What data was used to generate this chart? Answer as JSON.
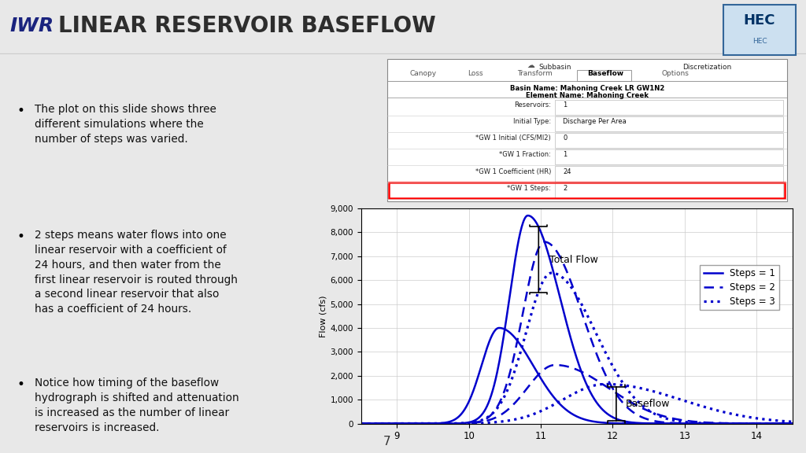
{
  "title": "LINEAR RESERVOIR BASEFLOW",
  "slide_bg": "#e8e8e8",
  "title_color": "#2d2d2d",
  "title_fontsize": 20,
  "bullet_points": [
    "The plot on this slide shows three\ndifferent simulations where the\nnumber of steps was varied.",
    "2 steps means water flows into one\nlinear reservoir with a coefficient of\n24 hours, and then water from the\nfirst linear reservoir is routed through\na second linear reservoir that also\nhas a coefficient of 24 hours.",
    "Notice how timing of the baseflow\nhydrograph is shifted and attenuation\nis increased as the number of linear\nreservoirs is increased."
  ],
  "plot_color": "#0000cc",
  "plot_xlim": [
    8.5,
    14.5
  ],
  "plot_ylim": [
    0,
    9000
  ],
  "plot_yticks": [
    0,
    1000,
    2000,
    3000,
    4000,
    5000,
    6000,
    7000,
    8000,
    9000
  ],
  "plot_ytick_labels": [
    "0",
    "1,000",
    "2,000",
    "3,000",
    "4,000",
    "5,000",
    "6,000",
    "7,000",
    "8,000",
    "9,000"
  ],
  "plot_xticks": [
    9,
    10,
    11,
    12,
    13,
    14
  ],
  "plot_ylabel": "Flow (cfs)",
  "legend_entries": [
    "Steps = 1",
    "Steps = 2",
    "Steps = 3"
  ],
  "annotation_total_flow": "Total Flow",
  "annotation_baseflow": "Baseflow",
  "page_number": "7",
  "form_title1": "Basin Name: Mahoning Creek LR GW1N2",
  "form_title2": "Element Name: Mahoning Creek",
  "form_fields": [
    [
      "Reservoirs:",
      "1"
    ],
    [
      "Initial Type:",
      "Discharge Per Area"
    ],
    [
      "*GW 1 Initial (CFS/MI2)",
      "0"
    ],
    [
      "*GW 1 Fraction:",
      "1"
    ],
    [
      "*GW 1 Coefficient (HR)",
      "24"
    ],
    [
      "*GW 1 Steps:",
      "2"
    ]
  ],
  "tabs": [
    "Canopy",
    "Loss",
    "Transform",
    "Baseflow",
    "Options"
  ],
  "active_tab": "Baseflow"
}
